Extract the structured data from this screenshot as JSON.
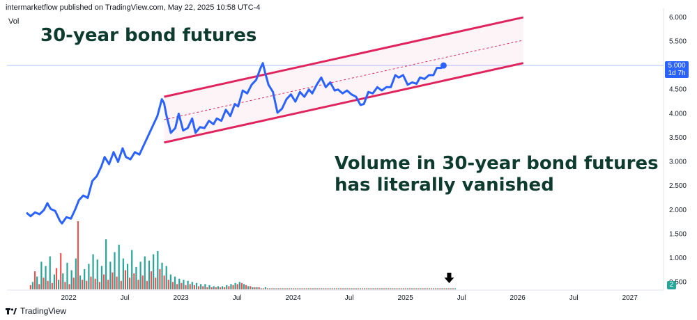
{
  "header": {
    "published": "intermarketflow published on TradingView.com, May 22, 2025 10:58 UTC-4"
  },
  "vol_label": "Vol",
  "annotations": {
    "title": "30-year bond futures",
    "body": "Volume in 30-year bond futures has literally vanished"
  },
  "footer": {
    "brand": "TradingView"
  },
  "colors": {
    "line": "#2962ff",
    "channel": "#e0245e",
    "vol_up": "#26a69a",
    "vol_down": "#ef5350",
    "annotation": "#0d3b2e"
  },
  "chart_data": {
    "type": "line",
    "title": "30-year bond futures",
    "x_axis": {
      "ticks": [
        "2022",
        "Jul",
        "2023",
        "Jul",
        "2024",
        "Jul",
        "2025",
        "Jul",
        "2026",
        "Jul",
        "2027"
      ],
      "tick_dates": [
        2022.0,
        2022.5,
        2023.0,
        2023.5,
        2024.0,
        2024.5,
        2025.0,
        2025.5,
        2026.0,
        2026.5,
        2027.0
      ],
      "range": [
        2021.45,
        2027.3
      ]
    },
    "y_axis": {
      "ticks": [
        "0.500",
        "1.000",
        "1.500",
        "2.000",
        "2.500",
        "3.000",
        "3.500",
        "4.000",
        "4.500",
        "5.000",
        "5.500",
        "6.000"
      ],
      "range": [
        0.35,
        6.1
      ]
    },
    "current_value": {
      "value": "5.000",
      "countdown": "1d 7h"
    },
    "volume_badge": "2",
    "series": [
      {
        "points": [
          [
            2021.63,
            1.93
          ],
          [
            2021.66,
            1.87
          ],
          [
            2021.7,
            1.95
          ],
          [
            2021.74,
            1.91
          ],
          [
            2021.78,
            2.0
          ],
          [
            2021.81,
            2.14
          ],
          [
            2021.84,
            2.02
          ],
          [
            2021.88,
            1.98
          ],
          [
            2021.92,
            1.78
          ],
          [
            2021.94,
            1.72
          ],
          [
            2021.98,
            1.85
          ],
          [
            2022.02,
            1.82
          ],
          [
            2022.06,
            2.02
          ],
          [
            2022.09,
            2.2
          ],
          [
            2022.13,
            2.3
          ],
          [
            2022.17,
            2.25
          ],
          [
            2022.21,
            2.6
          ],
          [
            2022.25,
            2.7
          ],
          [
            2022.29,
            2.9
          ],
          [
            2022.32,
            3.1
          ],
          [
            2022.36,
            2.95
          ],
          [
            2022.4,
            3.2
          ],
          [
            2022.44,
            3.0
          ],
          [
            2022.48,
            3.28
          ],
          [
            2022.51,
            3.1
          ],
          [
            2022.55,
            3.05
          ],
          [
            2022.59,
            3.2
          ],
          [
            2022.63,
            3.15
          ],
          [
            2022.67,
            3.35
          ],
          [
            2022.71,
            3.55
          ],
          [
            2022.75,
            3.75
          ],
          [
            2022.79,
            3.95
          ],
          [
            2022.83,
            4.3
          ],
          [
            2022.85,
            4.22
          ],
          [
            2022.87,
            3.97
          ],
          [
            2022.91,
            3.6
          ],
          [
            2022.95,
            3.7
          ],
          [
            2022.98,
            4.0
          ],
          [
            2023.02,
            3.65
          ],
          [
            2023.06,
            3.7
          ],
          [
            2023.1,
            3.9
          ],
          [
            2023.13,
            3.6
          ],
          [
            2023.17,
            3.72
          ],
          [
            2023.21,
            3.7
          ],
          [
            2023.25,
            3.85
          ],
          [
            2023.29,
            3.78
          ],
          [
            2023.32,
            3.9
          ],
          [
            2023.36,
            3.85
          ],
          [
            2023.4,
            4.08
          ],
          [
            2023.44,
            3.95
          ],
          [
            2023.48,
            4.2
          ],
          [
            2023.51,
            4.15
          ],
          [
            2023.55,
            4.48
          ],
          [
            2023.59,
            4.42
          ],
          [
            2023.63,
            4.6
          ],
          [
            2023.67,
            4.7
          ],
          [
            2023.71,
            4.95
          ],
          [
            2023.73,
            5.05
          ],
          [
            2023.75,
            4.85
          ],
          [
            2023.78,
            4.6
          ],
          [
            2023.82,
            4.45
          ],
          [
            2023.86,
            4.02
          ],
          [
            2023.9,
            4.1
          ],
          [
            2023.94,
            4.3
          ],
          [
            2023.98,
            4.4
          ],
          [
            2024.02,
            4.25
          ],
          [
            2024.06,
            4.45
          ],
          [
            2024.1,
            4.35
          ],
          [
            2024.14,
            4.5
          ],
          [
            2024.17,
            4.42
          ],
          [
            2024.21,
            4.6
          ],
          [
            2024.25,
            4.75
          ],
          [
            2024.29,
            4.55
          ],
          [
            2024.33,
            4.65
          ],
          [
            2024.37,
            4.48
          ],
          [
            2024.4,
            4.5
          ],
          [
            2024.44,
            4.42
          ],
          [
            2024.48,
            4.48
          ],
          [
            2024.52,
            4.4
          ],
          [
            2024.56,
            4.35
          ],
          [
            2024.6,
            4.18
          ],
          [
            2024.63,
            4.2
          ],
          [
            2024.67,
            4.45
          ],
          [
            2024.71,
            4.42
          ],
          [
            2024.75,
            4.55
          ],
          [
            2024.79,
            4.48
          ],
          [
            2024.83,
            4.55
          ],
          [
            2024.87,
            4.55
          ],
          [
            2024.91,
            4.8
          ],
          [
            2024.94,
            4.75
          ],
          [
            2024.98,
            4.8
          ],
          [
            2025.02,
            4.6
          ],
          [
            2025.06,
            4.65
          ],
          [
            2025.1,
            4.62
          ],
          [
            2025.13,
            4.75
          ],
          [
            2025.17,
            4.72
          ],
          [
            2025.21,
            4.8
          ],
          [
            2025.25,
            4.8
          ],
          [
            2025.28,
            4.95
          ],
          [
            2025.32,
            4.95
          ],
          [
            2025.34,
            5.0
          ]
        ]
      }
    ],
    "channel": {
      "upper": [
        [
          2022.85,
          4.35
        ],
        [
          2026.05,
          6.0
        ]
      ],
      "lower": [
        [
          2022.85,
          3.4
        ],
        [
          2026.05,
          5.05
        ]
      ],
      "mid": [
        [
          2022.85,
          3.875
        ],
        [
          2026.05,
          5.525
        ]
      ]
    },
    "price_line": 5.0,
    "volume": {
      "x_start": 2021.66,
      "x_step": 0.0192,
      "values": [
        4,
        7,
        17,
        12,
        5,
        26,
        11,
        22,
        8,
        31,
        6,
        14,
        20,
        9,
        34,
        15,
        7,
        25,
        5,
        18,
        11,
        29,
        64,
        13,
        9,
        19,
        8,
        24,
        12,
        33,
        10,
        28,
        7,
        22,
        14,
        47,
        9,
        26,
        16,
        35,
        12,
        42,
        8,
        29,
        18,
        24,
        11,
        37,
        15,
        21,
        9,
        26,
        13,
        31,
        8,
        27,
        17,
        33,
        11,
        36,
        19,
        25,
        13,
        22,
        9,
        14,
        7,
        12,
        5,
        10,
        6,
        9,
        4,
        8,
        5,
        7,
        4,
        6,
        3,
        5,
        3,
        5,
        2,
        4,
        2,
        3,
        2,
        3,
        2,
        3,
        2,
        4,
        3,
        5,
        4,
        6,
        5,
        7,
        6,
        5,
        4,
        3,
        3,
        2,
        2,
        2,
        2,
        1,
        1,
        2,
        1,
        1,
        1,
        1,
        1,
        1,
        1,
        1,
        1,
        1,
        1,
        1,
        1,
        1,
        1,
        1,
        1,
        1,
        1,
        1,
        1,
        1,
        1,
        1,
        1,
        1,
        1,
        1,
        1,
        1,
        1,
        1,
        1,
        1,
        1,
        1,
        1,
        1,
        1,
        1,
        1,
        1,
        1,
        1,
        1,
        1,
        1,
        1,
        1,
        1,
        1,
        1,
        1,
        1,
        1,
        1,
        1,
        1,
        1,
        1,
        1,
        1,
        1,
        1,
        1,
        1,
        1,
        1,
        1,
        1,
        1,
        1,
        1,
        1,
        1,
        1,
        1,
        1,
        1,
        1,
        1,
        1,
        1,
        1,
        1,
        1,
        1,
        1
      ],
      "down_every": 2
    }
  }
}
